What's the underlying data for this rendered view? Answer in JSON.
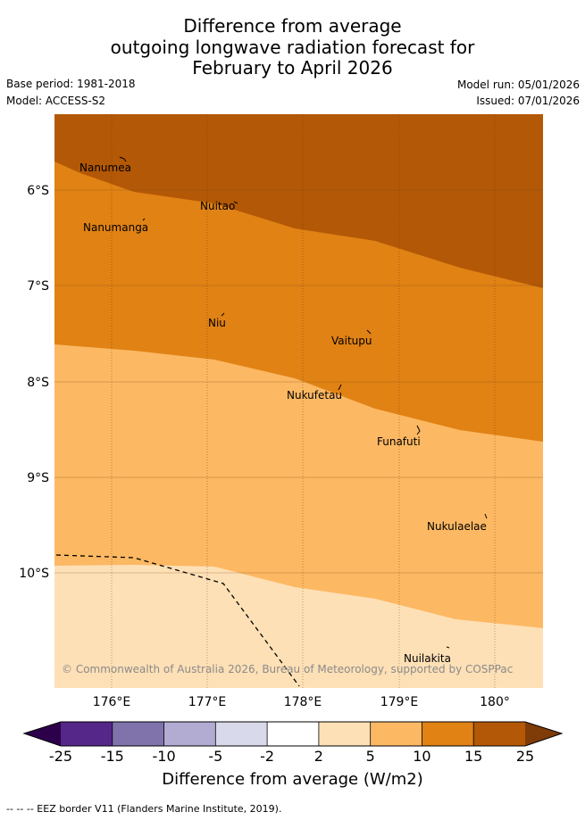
{
  "header": {
    "title_line1": "Difference from average",
    "title_line2": "outgoing longwave radiation forecast for",
    "title_line3": "February to April 2026",
    "base_period": "Base period: 1981-2018",
    "model": "Model: ACCESS-S2",
    "model_run": "Model run: 05/01/2026",
    "issued": "Issued: 07/01/2026"
  },
  "map": {
    "lat_labels": [
      "6°S",
      "7°S",
      "8°S",
      "9°S",
      "10°S"
    ],
    "lon_labels": [
      "176°E",
      "177°E",
      "178°E",
      "179°E",
      "180°"
    ],
    "places": [
      "Nanumea",
      "Nuitao",
      "Nanumanga",
      "Niu",
      "Vaitupu",
      "Nukufetau",
      "Funafuti",
      "Nukulaelae",
      "Nuilakita"
    ],
    "copyright": "© Commonwealth of Australia 2026, Bureau of Meteorology, supported by COSPPac",
    "colors": {
      "band_15_25": "#b35806",
      "band_10_15": "#e08214",
      "band_5_10": "#fdb863",
      "band_2_5": "#fee0b6"
    }
  },
  "colorbar": {
    "ticks": [
      "-25",
      "-15",
      "-10",
      "-5",
      "-2",
      "2",
      "5",
      "10",
      "15",
      "25"
    ],
    "colors": [
      "#542788",
      "#8073ac",
      "#b2abd2",
      "#d8daeb",
      "#ffffff",
      "#fee0b6",
      "#fdb863",
      "#e08214",
      "#b35806"
    ],
    "under_color": "#2d004b",
    "over_color": "#7f3b08",
    "title": "Difference from average (W/m2)"
  },
  "footer": {
    "legend": "--  --  -- EEZ border V11 (Flanders Marine Institute, 2019)."
  }
}
